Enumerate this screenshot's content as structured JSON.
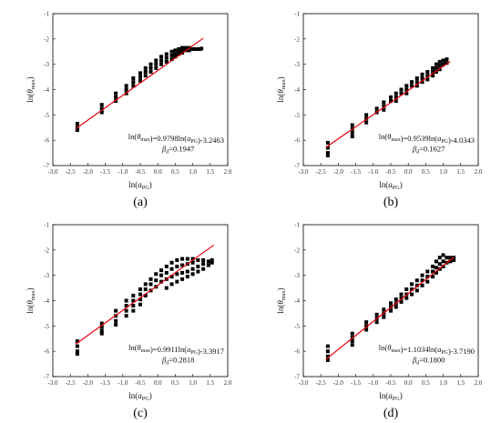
{
  "chart_data": [
    {
      "type": "scatter",
      "panel_label": "(a)",
      "xlabel": "ln(aPG)",
      "ylabel": "ln(θmax)",
      "xlim": [
        -3.0,
        2.0
      ],
      "ylim": [
        -7,
        -1
      ],
      "x_ticks": [
        "-3.0",
        "-2.5",
        "-2.0",
        "-1.5",
        "-1.0",
        "-0.5",
        "0.0",
        "0.5",
        "1.0",
        "1.5",
        "2.0"
      ],
      "y_ticks": [
        "-7",
        "-6",
        "-5",
        "-4",
        "-3",
        "-2",
        "-1"
      ],
      "fit": {
        "slope": 0.9798,
        "intercept": -3.2463,
        "x_range": [
          -2.35,
          1.3
        ]
      },
      "equation": "ln(θmax)=0.9798ln(aPG)-3.2463",
      "beta": "βd=0.1947",
      "series": [
        {
          "points": [
            [
              -2.3,
              -5.35
            ],
            [
              -2.3,
              -5.5
            ],
            [
              -2.3,
              -5.6
            ],
            [
              -1.6,
              -4.6
            ],
            [
              -1.6,
              -4.75
            ],
            [
              -1.6,
              -4.9
            ],
            [
              -1.2,
              -4.15
            ],
            [
              -1.2,
              -4.3
            ],
            [
              -1.2,
              -4.45
            ],
            [
              -0.9,
              -3.85
            ],
            [
              -0.9,
              -4.0
            ],
            [
              -0.9,
              -4.15
            ],
            [
              -0.7,
              -3.55
            ],
            [
              -0.7,
              -3.7
            ],
            [
              -0.7,
              -3.85
            ],
            [
              -0.5,
              -3.35
            ],
            [
              -0.5,
              -3.5
            ],
            [
              -0.5,
              -3.65
            ],
            [
              -0.35,
              -3.15
            ],
            [
              -0.35,
              -3.3
            ],
            [
              -0.35,
              -3.45
            ],
            [
              -0.2,
              -3.0
            ],
            [
              -0.2,
              -3.15
            ],
            [
              -0.2,
              -3.3
            ],
            [
              -0.05,
              -2.85
            ],
            [
              -0.05,
              -3.0
            ],
            [
              -0.05,
              -3.15
            ],
            [
              0.1,
              -2.7
            ],
            [
              0.1,
              -2.85
            ],
            [
              0.1,
              -3.0
            ],
            [
              0.25,
              -2.6
            ],
            [
              0.25,
              -2.75
            ],
            [
              0.25,
              -2.9
            ],
            [
              0.4,
              -2.5
            ],
            [
              0.4,
              -2.65
            ],
            [
              0.4,
              -2.8
            ],
            [
              0.5,
              -2.45
            ],
            [
              0.5,
              -2.6
            ],
            [
              0.5,
              -2.7
            ],
            [
              0.6,
              -2.4
            ],
            [
              0.6,
              -2.5
            ],
            [
              0.6,
              -2.6
            ],
            [
              0.7,
              -2.35
            ],
            [
              0.7,
              -2.45
            ],
            [
              0.7,
              -2.55
            ],
            [
              0.8,
              -2.35
            ],
            [
              0.8,
              -2.45
            ],
            [
              0.9,
              -2.35
            ],
            [
              0.9,
              -2.45
            ],
            [
              1.0,
              -2.4
            ],
            [
              1.1,
              -2.4
            ],
            [
              1.2,
              -2.4
            ],
            [
              1.25,
              -2.38
            ]
          ]
        }
      ]
    },
    {
      "type": "scatter",
      "panel_label": "(b)",
      "xlabel": "ln(aPG)",
      "ylabel": "ln(θmax)",
      "xlim": [
        -3.0,
        2.0
      ],
      "ylim": [
        -7,
        -1
      ],
      "x_ticks": [
        "-3.0",
        "-2.5",
        "-2.0",
        "-1.5",
        "-1.0",
        "-0.5",
        "0.0",
        "0.5",
        "1.0",
        "1.5",
        "2.0"
      ],
      "y_ticks": [
        "-7",
        "-6",
        "-5",
        "-4",
        "-3",
        "-2",
        "-1"
      ],
      "fit": {
        "slope": 0.9539,
        "intercept": -4.0343,
        "x_range": [
          -2.35,
          1.2
        ]
      },
      "equation": "ln(θmax)=0.9539ln(aPG)-4.0343",
      "beta": "βd=0.1627",
      "series": [
        {
          "points": [
            [
              -2.3,
              -6.1
            ],
            [
              -2.3,
              -6.3
            ],
            [
              -2.3,
              -6.5
            ],
            [
              -2.3,
              -6.6
            ],
            [
              -1.6,
              -5.4
            ],
            [
              -1.6,
              -5.55
            ],
            [
              -1.6,
              -5.7
            ],
            [
              -1.6,
              -5.85
            ],
            [
              -1.2,
              -5.0
            ],
            [
              -1.2,
              -5.15
            ],
            [
              -1.2,
              -5.3
            ],
            [
              -0.9,
              -4.75
            ],
            [
              -0.9,
              -4.9
            ],
            [
              -0.7,
              -4.5
            ],
            [
              -0.7,
              -4.65
            ],
            [
              -0.7,
              -4.8
            ],
            [
              -0.5,
              -4.3
            ],
            [
              -0.5,
              -4.45
            ],
            [
              -0.35,
              -4.15
            ],
            [
              -0.35,
              -4.3
            ],
            [
              -0.35,
              -4.45
            ],
            [
              -0.2,
              -4.0
            ],
            [
              -0.2,
              -4.15
            ],
            [
              -0.05,
              -3.85
            ],
            [
              -0.05,
              -4.0
            ],
            [
              -0.05,
              -4.15
            ],
            [
              0.1,
              -3.7
            ],
            [
              0.1,
              -3.85
            ],
            [
              0.25,
              -3.55
            ],
            [
              0.25,
              -3.7
            ],
            [
              0.25,
              -3.85
            ],
            [
              0.4,
              -3.4
            ],
            [
              0.4,
              -3.55
            ],
            [
              0.4,
              -3.7
            ],
            [
              0.55,
              -3.3
            ],
            [
              0.55,
              -3.45
            ],
            [
              0.55,
              -3.6
            ],
            [
              0.7,
              -3.15
            ],
            [
              0.7,
              -3.3
            ],
            [
              0.7,
              -3.45
            ],
            [
              0.8,
              -3.0
            ],
            [
              0.8,
              -3.15
            ],
            [
              0.8,
              -3.3
            ],
            [
              0.9,
              -2.9
            ],
            [
              0.9,
              -3.05
            ],
            [
              0.9,
              -3.2
            ],
            [
              1.0,
              -2.85
            ],
            [
              1.0,
              -3.0
            ],
            [
              1.1,
              -2.8
            ],
            [
              1.1,
              -2.95
            ]
          ]
        }
      ]
    },
    {
      "type": "scatter",
      "panel_label": "(c)",
      "xlabel": "ln(aPG)",
      "ylabel": "ln(θmax)",
      "xlim": [
        -3.0,
        2.0
      ],
      "ylim": [
        -7,
        -1
      ],
      "x_ticks": [
        "-3.0",
        "-2.5",
        "-2.0",
        "-1.5",
        "-1.0",
        "-0.5",
        "0.0",
        "0.5",
        "1.0",
        "1.5",
        "2.0"
      ],
      "y_ticks": [
        "-7",
        "-6",
        "-5",
        "-4",
        "-3",
        "-2",
        "-1"
      ],
      "fit": {
        "slope": 0.9911,
        "intercept": -3.3917,
        "x_range": [
          -2.35,
          1.6
        ]
      },
      "equation": "ln(θmax)=0.9911ln(aPG)-3.3917",
      "beta": "βd=0.2818",
      "series": [
        {
          "points": [
            [
              -2.3,
              -5.6
            ],
            [
              -2.3,
              -5.8
            ],
            [
              -2.3,
              -6.0
            ],
            [
              -2.3,
              -6.1
            ],
            [
              -1.6,
              -4.9
            ],
            [
              -1.6,
              -5.05
            ],
            [
              -1.6,
              -5.2
            ],
            [
              -1.6,
              -5.3
            ],
            [
              -1.2,
              -4.4
            ],
            [
              -1.2,
              -4.6
            ],
            [
              -1.2,
              -4.8
            ],
            [
              -1.2,
              -4.95
            ],
            [
              -0.9,
              -4.0
            ],
            [
              -0.9,
              -4.2
            ],
            [
              -0.9,
              -4.4
            ],
            [
              -0.9,
              -4.6
            ],
            [
              -0.7,
              -3.8
            ],
            [
              -0.7,
              -4.0
            ],
            [
              -0.7,
              -4.2
            ],
            [
              -0.7,
              -4.4
            ],
            [
              -0.5,
              -3.55
            ],
            [
              -0.5,
              -3.75
            ],
            [
              -0.5,
              -3.95
            ],
            [
              -0.5,
              -4.15
            ],
            [
              -0.35,
              -3.35
            ],
            [
              -0.35,
              -3.55
            ],
            [
              -0.35,
              -3.8
            ],
            [
              -0.2,
              -3.15
            ],
            [
              -0.2,
              -3.35
            ],
            [
              -0.2,
              -3.6
            ],
            [
              -0.05,
              -2.95
            ],
            [
              -0.05,
              -3.2
            ],
            [
              -0.05,
              -3.45
            ],
            [
              0.1,
              -2.8
            ],
            [
              0.1,
              -3.0
            ],
            [
              0.1,
              -3.25
            ],
            [
              0.25,
              -2.65
            ],
            [
              0.25,
              -2.9
            ],
            [
              0.25,
              -3.15
            ],
            [
              0.25,
              -3.5
            ],
            [
              0.4,
              -2.5
            ],
            [
              0.4,
              -2.75
            ],
            [
              0.4,
              -3.05
            ],
            [
              0.4,
              -3.35
            ],
            [
              0.55,
              -2.4
            ],
            [
              0.55,
              -2.65
            ],
            [
              0.55,
              -2.95
            ],
            [
              0.55,
              -3.25
            ],
            [
              0.7,
              -2.35
            ],
            [
              0.7,
              -2.6
            ],
            [
              0.7,
              -2.9
            ],
            [
              0.7,
              -3.15
            ],
            [
              0.85,
              -2.35
            ],
            [
              0.85,
              -2.55
            ],
            [
              0.85,
              -2.85
            ],
            [
              0.85,
              -3.05
            ],
            [
              1.0,
              -2.35
            ],
            [
              1.0,
              -2.5
            ],
            [
              1.0,
              -2.75
            ],
            [
              1.0,
              -2.95
            ],
            [
              1.15,
              -2.4
            ],
            [
              1.15,
              -2.65
            ],
            [
              1.15,
              -2.85
            ],
            [
              1.3,
              -2.4
            ],
            [
              1.3,
              -2.55
            ],
            [
              1.3,
              -2.75
            ],
            [
              1.45,
              -2.45
            ],
            [
              1.45,
              -2.6
            ],
            [
              1.55,
              -2.4
            ],
            [
              1.55,
              -2.5
            ]
          ]
        }
      ]
    },
    {
      "type": "scatter",
      "panel_label": "(d)",
      "xlabel": "ln(aPG)",
      "ylabel": "ln(θmax)",
      "xlim": [
        -3.0,
        2.0
      ],
      "ylim": [
        -7,
        -1
      ],
      "x_ticks": [
        "-3.0",
        "-2.5",
        "-2.0",
        "-1.5",
        "-1.0",
        "-0.5",
        "0.0",
        "0.5",
        "1.0",
        "1.5",
        "2.0"
      ],
      "y_ticks": [
        "-7",
        "-6",
        "-5",
        "-4",
        "-3",
        "-2",
        "-1"
      ],
      "fit": {
        "slope": 1.1034,
        "intercept": -3.719,
        "x_range": [
          -2.35,
          1.3
        ]
      },
      "equation": "ln(θmax)=1.1034ln(aPG)-3.7190",
      "beta": "βd=0.1800",
      "series": [
        {
          "points": [
            [
              -2.3,
              -5.8
            ],
            [
              -2.3,
              -6.0
            ],
            [
              -2.3,
              -6.2
            ],
            [
              -2.3,
              -6.35
            ],
            [
              -1.6,
              -5.3
            ],
            [
              -1.6,
              -5.45
            ],
            [
              -1.6,
              -5.6
            ],
            [
              -1.6,
              -5.75
            ],
            [
              -1.2,
              -4.85
            ],
            [
              -1.2,
              -5.0
            ],
            [
              -1.2,
              -5.15
            ],
            [
              -0.9,
              -4.55
            ],
            [
              -0.9,
              -4.7
            ],
            [
              -0.9,
              -4.85
            ],
            [
              -0.7,
              -4.35
            ],
            [
              -0.7,
              -4.5
            ],
            [
              -0.7,
              -4.65
            ],
            [
              -0.5,
              -4.1
            ],
            [
              -0.5,
              -4.25
            ],
            [
              -0.5,
              -4.4
            ],
            [
              -0.35,
              -3.95
            ],
            [
              -0.35,
              -4.1
            ],
            [
              -0.35,
              -4.25
            ],
            [
              -0.2,
              -3.75
            ],
            [
              -0.2,
              -3.9
            ],
            [
              -0.2,
              -4.05
            ],
            [
              -0.05,
              -3.55
            ],
            [
              -0.05,
              -3.75
            ],
            [
              -0.05,
              -3.9
            ],
            [
              0.1,
              -3.35
            ],
            [
              0.1,
              -3.55
            ],
            [
              0.1,
              -3.75
            ],
            [
              0.25,
              -3.2
            ],
            [
              0.25,
              -3.4
            ],
            [
              0.25,
              -3.6
            ],
            [
              0.4,
              -3.0
            ],
            [
              0.4,
              -3.2
            ],
            [
              0.4,
              -3.4
            ],
            [
              0.55,
              -2.85
            ],
            [
              0.55,
              -3.05
            ],
            [
              0.55,
              -3.25
            ],
            [
              0.7,
              -2.65
            ],
            [
              0.7,
              -2.85
            ],
            [
              0.7,
              -3.05
            ],
            [
              0.8,
              -2.45
            ],
            [
              0.8,
              -2.7
            ],
            [
              0.8,
              -2.9
            ],
            [
              0.9,
              -2.3
            ],
            [
              0.9,
              -2.55
            ],
            [
              0.9,
              -2.75
            ],
            [
              1.0,
              -2.2
            ],
            [
              1.0,
              -2.45
            ],
            [
              1.0,
              -2.65
            ],
            [
              1.1,
              -2.3
            ],
            [
              1.1,
              -2.5
            ],
            [
              1.2,
              -2.3
            ],
            [
              1.2,
              -2.45
            ],
            [
              1.3,
              -2.3
            ],
            [
              1.3,
              -2.4
            ]
          ]
        }
      ]
    }
  ]
}
